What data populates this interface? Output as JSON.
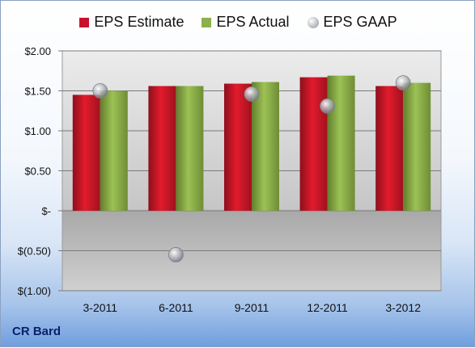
{
  "chart_data": {
    "type": "bar",
    "categories": [
      "3-2011",
      "6-2011",
      "9-2011",
      "12-2011",
      "3-2012"
    ],
    "series": [
      {
        "name": "EPS Estimate",
        "kind": "bar",
        "color": "#c8102e",
        "values": [
          1.45,
          1.56,
          1.59,
          1.67,
          1.56
        ]
      },
      {
        "name": "EPS Actual",
        "kind": "bar",
        "color": "#8cb04a",
        "values": [
          1.5,
          1.56,
          1.61,
          1.69,
          1.6
        ]
      },
      {
        "name": "EPS GAAP",
        "kind": "marker",
        "color": "#b8bcc2",
        "values": [
          1.5,
          -0.55,
          1.46,
          1.31,
          1.6
        ]
      }
    ],
    "y_ticks": [
      {
        "value": 2.0,
        "label": "$2.00"
      },
      {
        "value": 1.5,
        "label": "$1.50"
      },
      {
        "value": 1.0,
        "label": "$1.00"
      },
      {
        "value": 0.5,
        "label": "$0.50"
      },
      {
        "value": 0.0,
        "label": "$-"
      },
      {
        "value": -0.5,
        "label": "$(0.50)"
      },
      {
        "value": -1.0,
        "label": "$(1.00)"
      }
    ],
    "ylim": [
      -1.0,
      2.0
    ],
    "grid": true,
    "legend_position": "top"
  },
  "company_label": "CR Bard"
}
